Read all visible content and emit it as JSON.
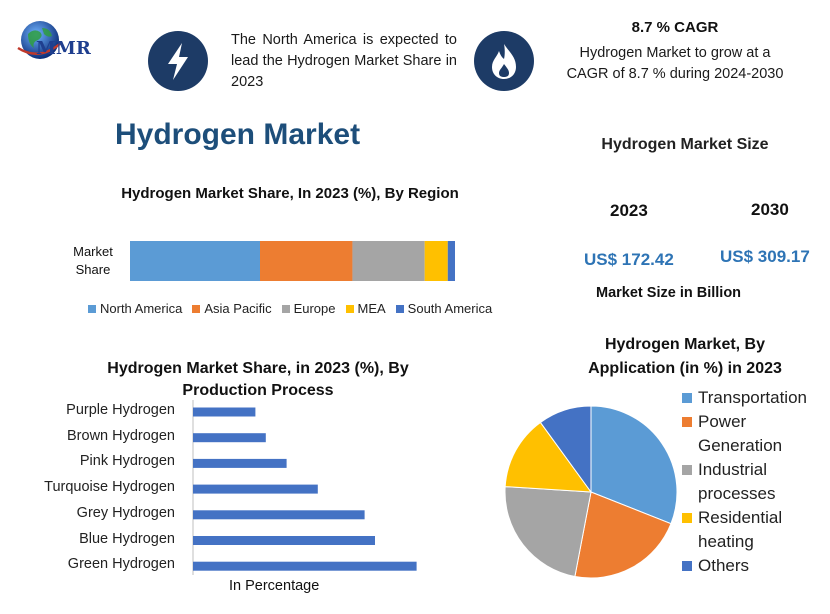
{
  "logo": {
    "text": "MMR"
  },
  "header": {
    "north_america_note": "The North America is expected to lead the Hydrogen Market Share in 2023",
    "cagr_title": "8.7 % CAGR",
    "cagr_text": "Hydrogen Market to grow at a CAGR of 8.7 % during 2024-2030",
    "icon_left": "lightning-icon",
    "icon_right": "flame-icon"
  },
  "main_title": "Hydrogen Market",
  "market_size": {
    "title": "Hydrogen Market Size",
    "year_a": "2023",
    "year_b": "2030",
    "value_a": "US$ 172.42",
    "value_b": "US$ 309.17",
    "footer": "Market Size in Billion"
  },
  "colors": {
    "north_america": "#5b9bd5",
    "asia_pacific": "#ed7d31",
    "europe": "#a5a5a5",
    "mea": "#ffc000",
    "south_america": "#4472c4",
    "bar": "#4472c4",
    "icon_bg": "#1d3b66"
  },
  "chart_data": [
    {
      "type": "bar",
      "orientation": "horizontal-stacked",
      "title": "Hydrogen Market Share, In 2023 (%), By Region",
      "categories": [
        "Market Share"
      ],
      "series": [
        {
          "name": "North America",
          "values": [
            45
          ]
        },
        {
          "name": "Asia Pacific",
          "values": [
            32
          ]
        },
        {
          "name": "Europe",
          "values": [
            25
          ]
        },
        {
          "name": "MEA",
          "values": [
            8
          ]
        },
        {
          "name": "South America",
          "values": [
            2.5
          ]
        }
      ],
      "legend": "bottom"
    },
    {
      "type": "bar",
      "orientation": "horizontal",
      "title": "Hydrogen Market Share, in 2023 (%), By Production Process",
      "xlabel": "In Percentage",
      "categories": [
        "Purple Hydrogen",
        "Brown Hydrogen",
        "Pink Hydrogen",
        "Turquoise Hydrogen",
        "Grey Hydrogen",
        "Blue Hydrogen",
        "Green Hydrogen"
      ],
      "values": [
        6,
        7,
        9,
        12,
        16.5,
        17.5,
        21.5
      ]
    },
    {
      "type": "pie",
      "title": "Hydrogen Market, By Application (in %) in 2023",
      "categories": [
        "Transportation",
        "Power Generation",
        "Industrial processes",
        "Residential heating",
        "Others"
      ],
      "values": [
        31,
        22,
        23,
        14,
        10
      ],
      "legend": "right"
    }
  ]
}
